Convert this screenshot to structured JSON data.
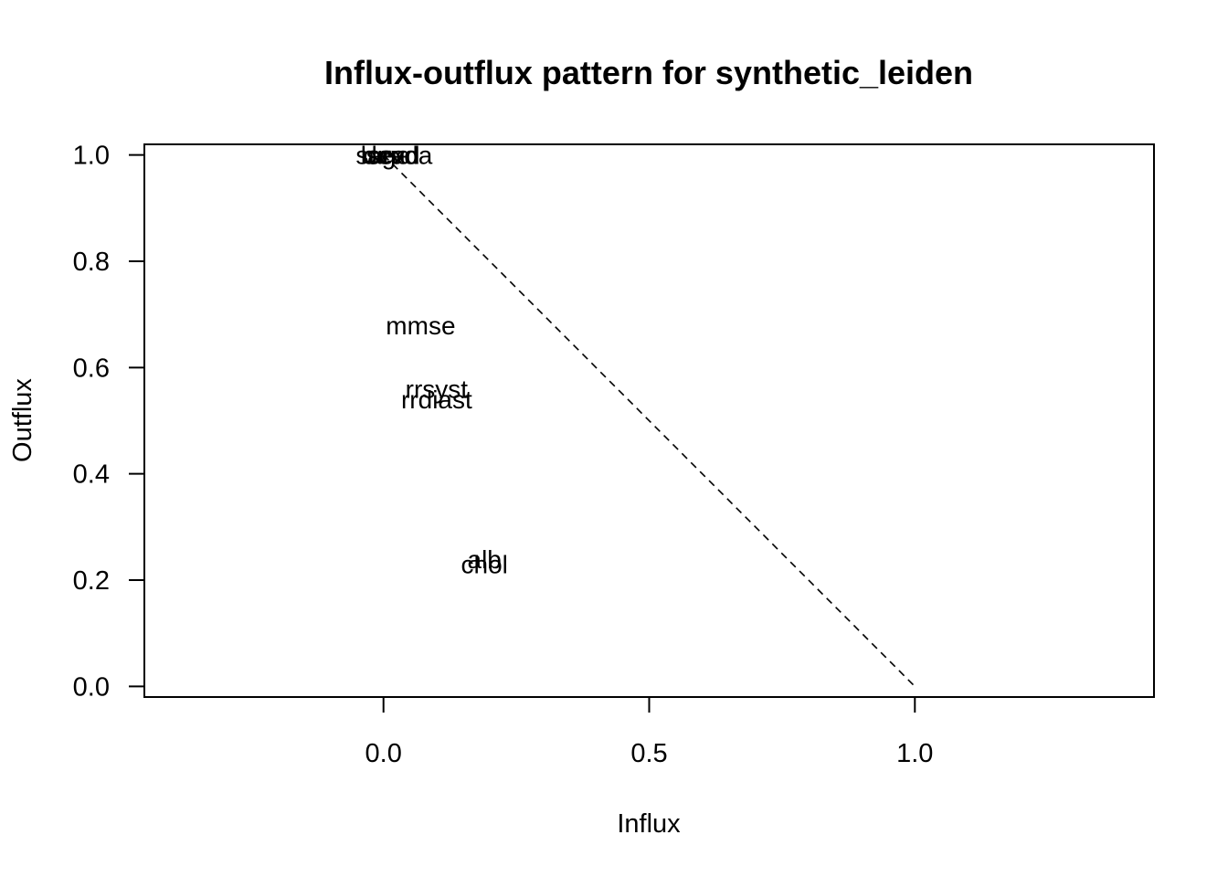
{
  "chart_data": {
    "type": "scatter",
    "title": "Influx-outflux pattern for synthetic_leiden",
    "xlabel": "Influx",
    "ylabel": "Outflux",
    "xlim": [
      -0.45,
      1.45
    ],
    "ylim": [
      -0.02,
      1.02
    ],
    "xticks": [
      {
        "value": 0.0,
        "label": "0.0"
      },
      {
        "value": 0.5,
        "label": "0.5"
      },
      {
        "value": 1.0,
        "label": "1.0"
      }
    ],
    "yticks": [
      {
        "value": 0.0,
        "label": "0.0"
      },
      {
        "value": 0.2,
        "label": "0.2"
      },
      {
        "value": 0.4,
        "label": "0.4"
      },
      {
        "value": 0.6,
        "label": "0.6"
      },
      {
        "value": 0.8,
        "label": "0.8"
      },
      {
        "value": 1.0,
        "label": "1.0"
      }
    ],
    "grid": false,
    "reference_line": {
      "from": [
        0,
        1
      ],
      "to": [
        1,
        0
      ],
      "style": "dashed"
    },
    "points": [
      {
        "label": "lsex",
        "x": 0.0,
        "y": 1.0
      },
      {
        "label": "sex",
        "x": 0.005,
        "y": 1.0
      },
      {
        "label": "age",
        "x": 0.01,
        "y": 1.0
      },
      {
        "label": "dead",
        "x": 0.015,
        "y": 1.0
      },
      {
        "label": "survda",
        "x": 0.02,
        "y": 1.0
      },
      {
        "label": "mmse",
        "x": 0.07,
        "y": 0.68
      },
      {
        "label": "rrsyst",
        "x": 0.1,
        "y": 0.56
      },
      {
        "label": "rrdiast",
        "x": 0.1,
        "y": 0.54
      },
      {
        "label": "alb",
        "x": 0.19,
        "y": 0.24
      },
      {
        "label": "chol",
        "x": 0.19,
        "y": 0.23
      }
    ]
  }
}
